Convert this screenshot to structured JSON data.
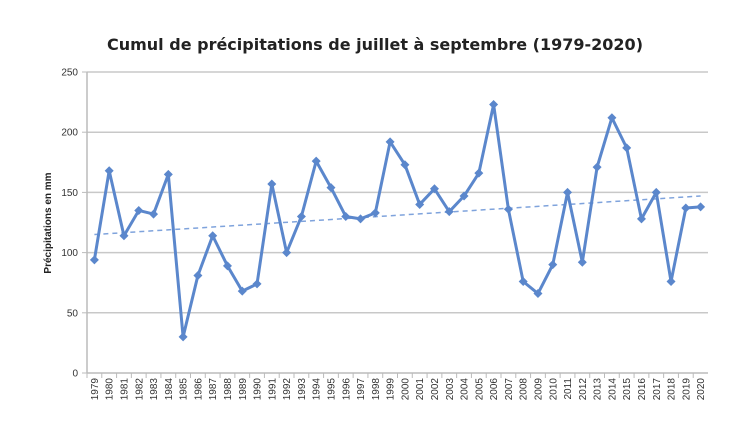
{
  "chart_data": {
    "type": "line",
    "title": "Cumul de précipitations de juillet à septembre (1979-2020)",
    "xlabel": "",
    "ylabel": "Précipitations en mm",
    "ylim": [
      0,
      250
    ],
    "yticks": [
      0,
      50,
      100,
      150,
      200,
      250
    ],
    "grid": true,
    "legend": "none",
    "categories": [
      "1979",
      "1980",
      "1981",
      "1982",
      "1983",
      "1984",
      "1985",
      "1986",
      "1987",
      "1988",
      "1989",
      "1990",
      "1991",
      "1992",
      "1993",
      "1994",
      "1995",
      "1996",
      "1997",
      "1998",
      "1999",
      "2000",
      "2001",
      "2002",
      "2003",
      "2004",
      "2005",
      "2006",
      "2007",
      "2008",
      "2009",
      "2010",
      "2011",
      "2012",
      "2013",
      "2014",
      "2015",
      "2016",
      "2017",
      "2018",
      "2019",
      "2020"
    ],
    "series": [
      {
        "values": [
          94,
          168,
          114,
          135,
          132,
          165,
          30,
          81,
          114,
          89,
          68,
          74,
          157,
          100,
          130,
          176,
          154,
          130,
          128,
          133,
          192,
          173,
          140,
          153,
          134,
          147,
          166,
          223,
          136,
          76,
          66,
          90,
          150,
          92,
          171,
          212,
          187,
          128,
          150,
          76,
          137,
          138
        ],
        "color": "#5b87cc",
        "marker": "diamond"
      }
    ],
    "trendline": {
      "type": "linear",
      "start": 115,
      "end": 147,
      "style": "dashed",
      "color": "#7fa3dc"
    }
  }
}
